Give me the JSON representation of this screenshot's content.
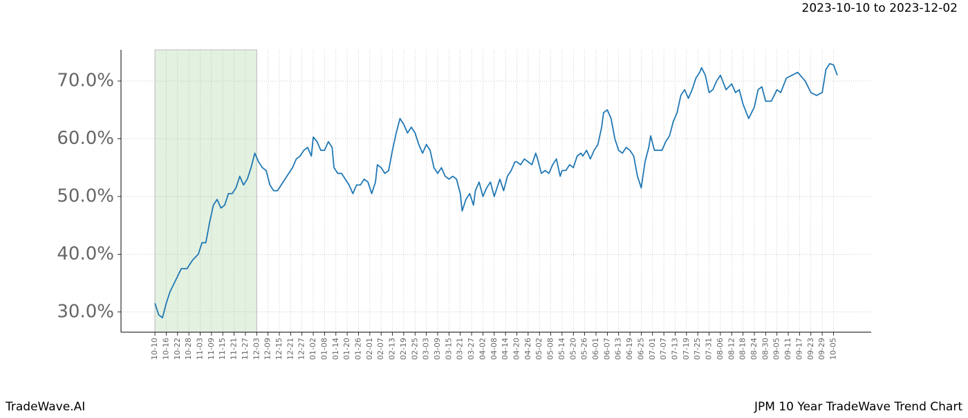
{
  "chart_data": {
    "type": "line",
    "title": "2023-10-10 to 2023-12-02",
    "brand": "TradeWave.AI",
    "footer_title": "JPM 10 Year TradeWave Trend Chart",
    "color": "#1f77b4",
    "shade_color": "#e3f1e1",
    "shaded_x": [
      0,
      54
    ],
    "grid": true,
    "x": [
      0,
      2,
      4,
      6,
      8,
      11,
      14,
      17,
      20,
      23,
      25,
      27,
      29,
      31,
      33,
      35,
      37,
      39,
      41,
      43,
      45,
      47,
      49,
      51,
      53,
      55,
      57,
      59,
      61,
      63,
      65,
      67,
      69,
      71,
      73,
      75,
      77,
      79,
      81,
      83,
      84,
      86,
      88,
      90,
      92,
      94,
      95,
      97,
      99,
      101,
      103,
      105,
      107,
      109,
      111,
      113,
      115,
      117,
      118,
      120,
      122,
      124,
      126,
      128,
      130,
      132,
      134,
      136,
      138,
      140,
      142,
      144,
      146,
      148,
      150,
      152,
      154,
      156,
      158,
      160,
      162,
      163,
      165,
      167,
      169,
      170,
      172,
      174,
      176,
      178,
      180,
      181,
      183,
      185,
      187,
      189,
      191,
      192,
      194,
      196,
      198,
      200,
      202,
      203,
      205,
      207,
      209,
      211,
      213,
      215,
      216,
      218,
      220,
      222,
      224,
      226,
      227,
      229,
      231,
      233,
      235,
      237,
      238,
      240,
      242,
      244,
      246,
      248,
      250,
      252,
      254,
      256,
      258,
      260,
      262,
      263,
      265,
      267,
      269,
      271,
      273,
      275,
      277,
      279,
      281,
      283,
      285,
      287,
      289,
      290,
      292,
      294,
      296,
      298,
      300,
      303,
      306,
      308,
      310,
      312,
      315,
      318,
      320,
      322,
      324,
      327,
      330,
      332,
      335,
      338,
      341,
      345,
      348,
      351,
      354,
      356,
      358,
      360,
      362
    ],
    "values": [
      31.5,
      29.5,
      29,
      31.5,
      33.5,
      35.5,
      37.5,
      37.5,
      39,
      40,
      42,
      42,
      45.5,
      48.5,
      49.5,
      48,
      48.5,
      50.5,
      50.5,
      51.5,
      53.5,
      52,
      53,
      55,
      57.5,
      56,
      55,
      54.5,
      52,
      51,
      51,
      52,
      53,
      54,
      55,
      56.5,
      57,
      58,
      58.5,
      57,
      60.3,
      59.5,
      58,
      58,
      59.5,
      58.5,
      55,
      54,
      54,
      53,
      52,
      50.5,
      52,
      52,
      53,
      52.5,
      50.5,
      52.5,
      55.5,
      55,
      54,
      54.5,
      58,
      61,
      63.5,
      62.5,
      61,
      62,
      61,
      59,
      57.5,
      59,
      58,
      55,
      54,
      55,
      53.5,
      53,
      53.5,
      53,
      50.5,
      47.5,
      49.5,
      50.5,
      48.5,
      51,
      52.5,
      50,
      51.5,
      52.5,
      50,
      51,
      53,
      51,
      53.5,
      54.5,
      56,
      56,
      55.5,
      56.5,
      56,
      55.5,
      57.5,
      56.5,
      54,
      54.5,
      54,
      55.5,
      56.5,
      53.5,
      54.5,
      54.5,
      55.5,
      55,
      57,
      57.5,
      57,
      58,
      56.5,
      58,
      59,
      62,
      64.5,
      65,
      63.5,
      60,
      58,
      57.5,
      58.5,
      58,
      57,
      53.5,
      51.5,
      56,
      58.5,
      60.5,
      58,
      58,
      58,
      59.5,
      60.5,
      63,
      64.5,
      67.5,
      68.5,
      67,
      68.5,
      70.5,
      71.5,
      72.3,
      71,
      68,
      68.5,
      70,
      71,
      68.5,
      69.5,
      68,
      68.5,
      66,
      63.5,
      65.5,
      68.5,
      69,
      66.5,
      66.5,
      68.5,
      68,
      70.5,
      71,
      71.5,
      70,
      68,
      67.5,
      68,
      72,
      73,
      72.8,
      71
    ],
    "xlim": [
      -18,
      380
    ],
    "ylim": [
      26.5,
      75.4
    ],
    "yticks": [
      {
        "value": 30,
        "label": "30.0%"
      },
      {
        "value": 40,
        "label": "40.0%"
      },
      {
        "value": 50,
        "label": "50.0%"
      },
      {
        "value": 60,
        "label": "60.0%"
      },
      {
        "value": 70,
        "label": "70.0%"
      }
    ],
    "xticks": [
      {
        "value": 0,
        "label": "10-10"
      },
      {
        "value": 6,
        "label": "10-16"
      },
      {
        "value": 12,
        "label": "10-22"
      },
      {
        "value": 18,
        "label": "10-28"
      },
      {
        "value": 24,
        "label": "11-03"
      },
      {
        "value": 30,
        "label": "11-09"
      },
      {
        "value": 36,
        "label": "11-15"
      },
      {
        "value": 42,
        "label": "11-21"
      },
      {
        "value": 48,
        "label": "11-27"
      },
      {
        "value": 54,
        "label": "12-03"
      },
      {
        "value": 60,
        "label": "12-09"
      },
      {
        "value": 66,
        "label": "12-15"
      },
      {
        "value": 72,
        "label": "12-21"
      },
      {
        "value": 78,
        "label": "12-27"
      },
      {
        "value": 84,
        "label": "01-02"
      },
      {
        "value": 90,
        "label": "01-08"
      },
      {
        "value": 96,
        "label": "01-14"
      },
      {
        "value": 102,
        "label": "01-20"
      },
      {
        "value": 108,
        "label": "01-26"
      },
      {
        "value": 114,
        "label": "02-01"
      },
      {
        "value": 120,
        "label": "02-07"
      },
      {
        "value": 126,
        "label": "02-13"
      },
      {
        "value": 132,
        "label": "02-19"
      },
      {
        "value": 138,
        "label": "02-25"
      },
      {
        "value": 144,
        "label": "03-03"
      },
      {
        "value": 150,
        "label": "03-09"
      },
      {
        "value": 156,
        "label": "03-15"
      },
      {
        "value": 162,
        "label": "03-21"
      },
      {
        "value": 168,
        "label": "03-27"
      },
      {
        "value": 174,
        "label": "04-02"
      },
      {
        "value": 180,
        "label": "04-08"
      },
      {
        "value": 186,
        "label": "04-14"
      },
      {
        "value": 192,
        "label": "04-20"
      },
      {
        "value": 198,
        "label": "04-26"
      },
      {
        "value": 204,
        "label": "05-02"
      },
      {
        "value": 210,
        "label": "05-08"
      },
      {
        "value": 216,
        "label": "05-14"
      },
      {
        "value": 222,
        "label": "05-20"
      },
      {
        "value": 228,
        "label": "05-26"
      },
      {
        "value": 234,
        "label": "06-01"
      },
      {
        "value": 240,
        "label": "06-07"
      },
      {
        "value": 246,
        "label": "06-13"
      },
      {
        "value": 252,
        "label": "06-19"
      },
      {
        "value": 258,
        "label": "06-25"
      },
      {
        "value": 264,
        "label": "07-01"
      },
      {
        "value": 270,
        "label": "07-07"
      },
      {
        "value": 276,
        "label": "07-13"
      },
      {
        "value": 282,
        "label": "07-19"
      },
      {
        "value": 288,
        "label": "07-25"
      },
      {
        "value": 294,
        "label": "07-31"
      },
      {
        "value": 300,
        "label": "08-06"
      },
      {
        "value": 306,
        "label": "08-12"
      },
      {
        "value": 312,
        "label": "08-18"
      },
      {
        "value": 318,
        "label": "08-24"
      },
      {
        "value": 324,
        "label": "08-30"
      },
      {
        "value": 330,
        "label": "09-05"
      },
      {
        "value": 336,
        "label": "09-11"
      },
      {
        "value": 342,
        "label": "09-17"
      },
      {
        "value": 348,
        "label": "09-23"
      },
      {
        "value": 354,
        "label": "09-29"
      },
      {
        "value": 360,
        "label": "10-05"
      }
    ]
  }
}
